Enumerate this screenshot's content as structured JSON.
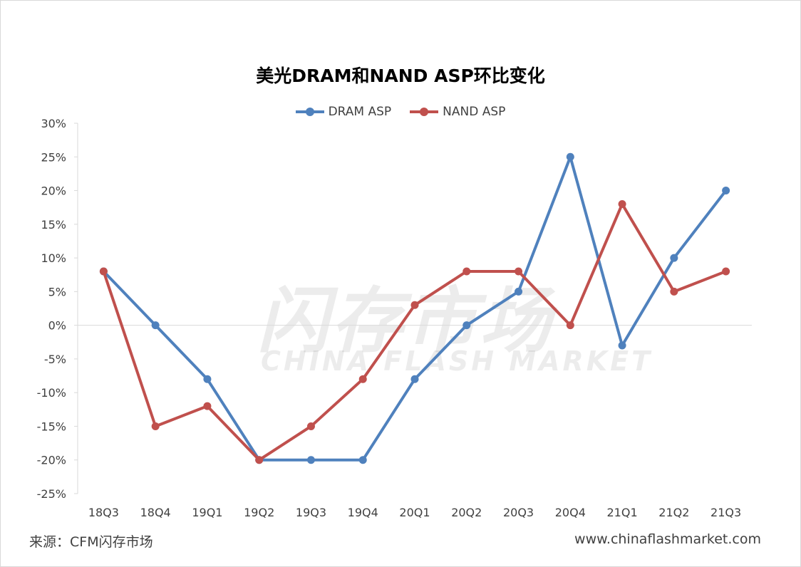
{
  "chart_data": {
    "type": "line",
    "title": "美光DRAM和NAND ASP环比变化",
    "categories": [
      "18Q3",
      "18Q4",
      "19Q1",
      "19Q2",
      "19Q3",
      "19Q4",
      "20Q1",
      "20Q2",
      "20Q3",
      "20Q4",
      "21Q1",
      "21Q2",
      "21Q3"
    ],
    "series": [
      {
        "name": "DRAM ASP",
        "color": "#4f81bd",
        "values": [
          8,
          0,
          -8,
          -20,
          -20,
          -20,
          -8,
          0,
          5,
          25,
          -3,
          10,
          20
        ]
      },
      {
        "name": "NAND ASP",
        "color": "#c0504d",
        "values": [
          8,
          -15,
          -12,
          -20,
          -15,
          -8,
          3,
          8,
          8,
          0,
          18,
          5,
          8
        ]
      }
    ],
    "ylim": [
      -25,
      30
    ],
    "y_ticks": [
      "30%",
      "25%",
      "20%",
      "15%",
      "10%",
      "5%",
      "0%",
      "-5%",
      "-10%",
      "-15%",
      "-20%",
      "-25%"
    ],
    "y_tick_values": [
      30,
      25,
      20,
      15,
      10,
      5,
      0,
      -5,
      -10,
      -15,
      -20,
      -25
    ],
    "grid": false,
    "legend": "top-center"
  },
  "watermark": {
    "cn": "闪存市场",
    "en": "CHINA FLASH MARKET"
  },
  "footer": {
    "source": "来源：CFM闪存市场",
    "website": "www.chinaflashmarket.com"
  }
}
